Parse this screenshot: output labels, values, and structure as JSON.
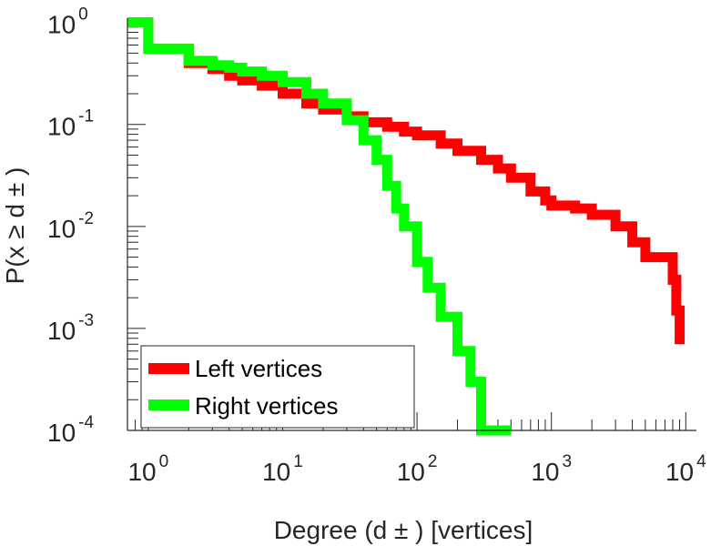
{
  "chart_data": {
    "type": "line",
    "scale": "log-log",
    "title": "",
    "xlabel": "Degree (d ± ) [vertices]",
    "ylabel": "P(x ≥ d ± )",
    "xlim": [
      0.7,
      12000
    ],
    "ylim": [
      0.0001,
      1.1
    ],
    "x_ticks": [
      {
        "base": "10",
        "exp": "0"
      },
      {
        "base": "10",
        "exp": "1"
      },
      {
        "base": "10",
        "exp": "2"
      },
      {
        "base": "10",
        "exp": "3"
      },
      {
        "base": "10",
        "exp": "4"
      }
    ],
    "y_ticks": [
      {
        "base": "10",
        "exp": "0"
      },
      {
        "base": "10",
        "exp": "-1"
      },
      {
        "base": "10",
        "exp": "-2"
      },
      {
        "base": "10",
        "exp": "-3"
      },
      {
        "base": "10",
        "exp": "-4"
      }
    ],
    "legend_position": "bottom-left",
    "series": [
      {
        "name": "Left vertices",
        "color": "#ff0000",
        "x": [
          0.7,
          1,
          1,
          2,
          2,
          3,
          4,
          5,
          7,
          10,
          15,
          20,
          30,
          40,
          60,
          80,
          100,
          150,
          200,
          300,
          400,
          500,
          700,
          900,
          1000,
          1500,
          2000,
          3000,
          4000,
          5000,
          6000,
          7000,
          8000,
          8500,
          9000
        ],
        "y": [
          1,
          1,
          0.55,
          0.55,
          0.4,
          0.35,
          0.3,
          0.27,
          0.24,
          0.2,
          0.16,
          0.14,
          0.12,
          0.105,
          0.095,
          0.085,
          0.078,
          0.065,
          0.055,
          0.045,
          0.037,
          0.03,
          0.022,
          0.018,
          0.016,
          0.015,
          0.013,
          0.01,
          0.007,
          0.005,
          0.005,
          0.005,
          0.003,
          0.0015,
          0.0007
        ]
      },
      {
        "name": "Right vertices",
        "color": "#00ff00",
        "x": [
          0.7,
          1,
          1,
          2,
          2,
          3,
          4,
          5,
          7,
          10,
          15,
          20,
          30,
          40,
          50,
          60,
          70,
          80,
          100,
          120,
          150,
          200,
          250,
          300,
          300,
          500
        ],
        "y": [
          1,
          1,
          0.55,
          0.55,
          0.42,
          0.38,
          0.36,
          0.33,
          0.3,
          0.26,
          0.2,
          0.16,
          0.11,
          0.07,
          0.045,
          0.025,
          0.015,
          0.01,
          0.0045,
          0.0025,
          0.0013,
          0.0006,
          0.0003,
          0.0002,
          0.0001,
          0.0001
        ]
      }
    ]
  }
}
